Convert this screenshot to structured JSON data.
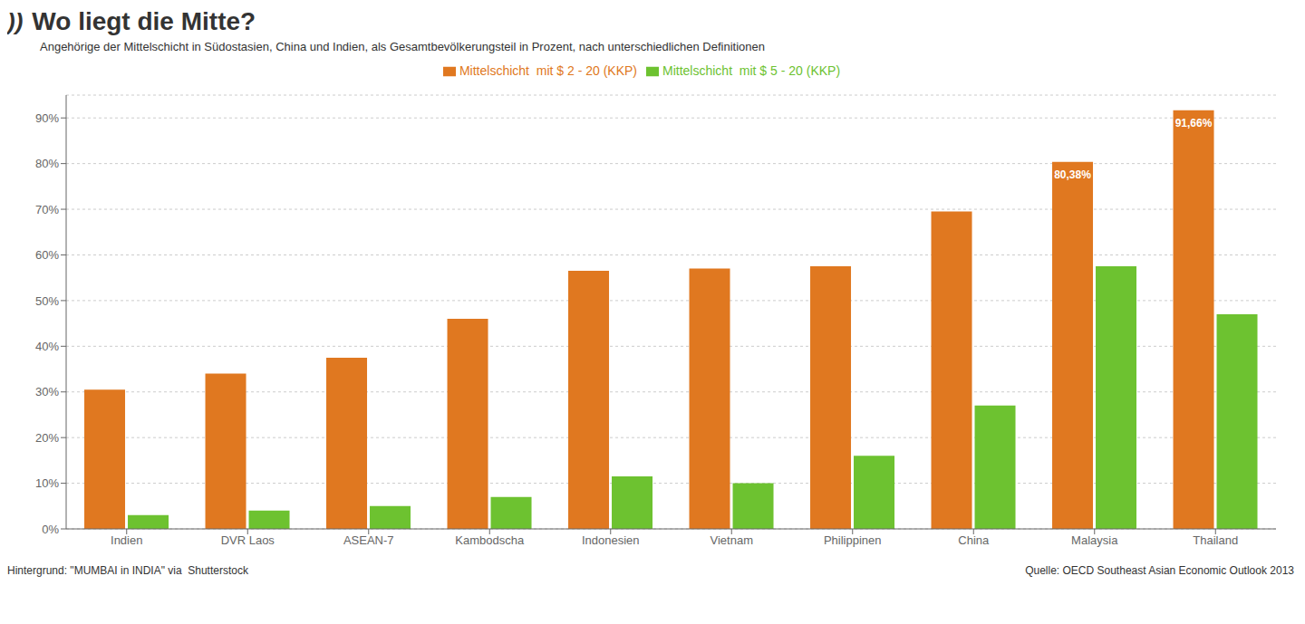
{
  "chart_data": {
    "type": "bar",
    "logo": "))",
    "title": "Wo liegt die Mitte?",
    "subtitle": "Angehörige der Mittelschicht in Südostasien, China und Indien, als Gesamtbevölkerungsteil in Prozent, nach unterschiedlichen Definitionen",
    "categories": [
      "Indien",
      "DVR Laos",
      "ASEAN-7",
      "Kambodscha",
      "Indonesien",
      "Vietnam",
      "Philippinen",
      "China",
      "Malaysia",
      "Thailand"
    ],
    "series": [
      {
        "name": "Mittelschicht  mit $ 2 - 20 (KKP)",
        "color": "#e07820",
        "values": [
          30.5,
          34.0,
          37.5,
          46.0,
          56.5,
          57.0,
          57.5,
          69.5,
          80.38,
          91.66
        ]
      },
      {
        "name": "Mittelschicht  mit $ 5 - 20 (KKP)",
        "color": "#6dc230",
        "values": [
          3.0,
          4.0,
          5.0,
          7.0,
          11.5,
          10.0,
          16.0,
          27.0,
          57.5,
          47.0
        ]
      }
    ],
    "annotations": [
      {
        "text": "80,38%",
        "category": "Malaysia",
        "series": "Mittelschicht  mit $ 2 - 20 (KKP)"
      },
      {
        "text": "91,66%",
        "category": "Thailand",
        "series": "Mittelschicht  mit $ 2 - 20 (KKP)"
      }
    ],
    "ylim": [
      0,
      95
    ],
    "yticks": [
      {
        "value": 0,
        "label": "0%"
      },
      {
        "value": 10,
        "label": "10%"
      },
      {
        "value": 20,
        "label": "20%"
      },
      {
        "value": 30,
        "label": "30%"
      },
      {
        "value": 40,
        "label": "40%"
      },
      {
        "value": 50,
        "label": "50%"
      },
      {
        "value": 60,
        "label": "60%"
      },
      {
        "value": 70,
        "label": "70%"
      },
      {
        "value": 80,
        "label": "80%"
      },
      {
        "value": 90,
        "label": "90%"
      }
    ],
    "grid": true,
    "legend": "top",
    "footer": [
      "Hintergrund: \"MUMBAI in INDIA\" via  Shutterstock",
      "Quelle: OECD Southeast Asian Economic Outlook 2013"
    ]
  }
}
